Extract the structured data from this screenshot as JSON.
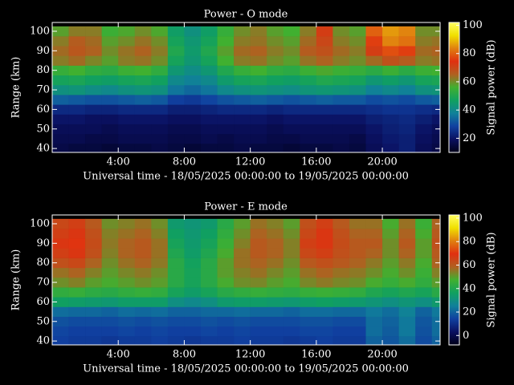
{
  "chart_data": [
    {
      "type": "heatmap",
      "title": "Power - O mode",
      "xlabel": "Universal time - 18/05/2025 00:00:00 to 19/05/2025 00:00:00",
      "ylabel": "Range (km)",
      "x": [
        0.5,
        1.5,
        2.5,
        3.5,
        4.5,
        5.5,
        6.5,
        7.5,
        8.5,
        9.5,
        10.5,
        11.5,
        12.5,
        13.5,
        14.5,
        15.5,
        16.5,
        17.5,
        18.5,
        19.5,
        20.5,
        21.5,
        22.5,
        23.5
      ],
      "y": [
        40,
        45,
        50,
        55,
        60,
        65,
        70,
        75,
        80,
        85,
        90,
        95,
        100
      ],
      "z": [
        [
          16,
          15,
          15,
          14,
          15,
          15,
          16,
          15,
          14,
          15,
          15,
          16,
          15,
          15,
          14,
          15,
          15,
          16,
          15,
          18,
          20,
          22,
          18,
          16
        ],
        [
          17,
          17,
          16,
          16,
          17,
          17,
          17,
          16,
          16,
          17,
          16,
          17,
          17,
          16,
          16,
          17,
          17,
          17,
          16,
          19,
          21,
          22,
          19,
          17
        ],
        [
          18,
          18,
          18,
          17,
          18,
          18,
          18,
          17,
          17,
          18,
          18,
          18,
          18,
          17,
          18,
          18,
          18,
          18,
          18,
          20,
          22,
          23,
          20,
          18
        ],
        [
          20,
          20,
          19,
          19,
          20,
          20,
          20,
          19,
          19,
          20,
          20,
          20,
          20,
          19,
          20,
          20,
          20,
          20,
          20,
          22,
          23,
          24,
          22,
          20
        ],
        [
          24,
          24,
          23,
          23,
          24,
          24,
          24,
          22,
          22,
          23,
          24,
          24,
          24,
          23,
          24,
          24,
          24,
          24,
          24,
          25,
          26,
          26,
          25,
          24
        ],
        [
          33,
          32,
          31,
          31,
          32,
          33,
          32,
          28,
          27,
          29,
          31,
          32,
          33,
          32,
          31,
          32,
          33,
          32,
          32,
          30,
          31,
          30,
          32,
          33
        ],
        [
          42,
          43,
          41,
          40,
          42,
          43,
          42,
          36,
          34,
          36,
          40,
          42,
          43,
          42,
          41,
          43,
          44,
          43,
          42,
          38,
          40,
          38,
          42,
          43
        ],
        [
          48,
          49,
          47,
          46,
          48,
          49,
          47,
          40,
          38,
          40,
          45,
          48,
          49,
          47,
          46,
          48,
          50,
          49,
          48,
          44,
          46,
          44,
          48,
          49
        ],
        [
          54,
          56,
          53,
          52,
          55,
          56,
          53,
          44,
          41,
          44,
          50,
          54,
          56,
          53,
          52,
          55,
          57,
          55,
          54,
          52,
          55,
          52,
          55,
          56
        ],
        [
          62,
          64,
          61,
          58,
          62,
          63,
          60,
          48,
          44,
          48,
          56,
          62,
          63,
          60,
          58,
          63,
          65,
          62,
          60,
          64,
          68,
          66,
          62,
          63
        ],
        [
          64,
          67,
          65,
          60,
          63,
          65,
          62,
          50,
          45,
          50,
          58,
          64,
          65,
          62,
          60,
          66,
          68,
          64,
          62,
          72,
          78,
          76,
          64,
          65
        ],
        [
          62,
          66,
          64,
          58,
          60,
          63,
          60,
          48,
          44,
          48,
          56,
          62,
          63,
          60,
          58,
          64,
          70,
          62,
          60,
          76,
          84,
          82,
          62,
          63
        ],
        [
          58,
          62,
          62,
          55,
          57,
          60,
          57,
          46,
          42,
          46,
          54,
          60,
          62,
          58,
          56,
          62,
          72,
          60,
          58,
          80,
          86,
          84,
          60,
          60
        ]
      ],
      "xlim": [
        0,
        23.5
      ],
      "ylim": [
        38,
        104.5
      ],
      "xticks": [
        {
          "value": 4,
          "label": "4:00"
        },
        {
          "value": 8,
          "label": "8:00"
        },
        {
          "value": 12,
          "label": "12:00"
        },
        {
          "value": 16,
          "label": "16:00"
        },
        {
          "value": 20,
          "label": "20:00"
        }
      ],
      "yticks": [
        40,
        50,
        60,
        70,
        80,
        90,
        100
      ],
      "colorbar": {
        "label": "Signal power (dB)",
        "lim": [
          10,
          102
        ],
        "ticks": [
          20,
          40,
          60,
          80,
          100
        ]
      },
      "colors": [
        "#000018",
        "#0a1060",
        "#1040a0",
        "#10809a",
        "#10a060",
        "#40b030",
        "#b06020",
        "#e03010",
        "#e08010",
        "#f0e000",
        "#ffff60"
      ]
    },
    {
      "type": "heatmap",
      "title": "Power - E mode",
      "xlabel": "Universal time - 18/05/2025 00:00:00 to 19/05/2025 00:00:00",
      "ylabel": "Range (km)",
      "x": [
        0.5,
        1.5,
        2.5,
        3.5,
        4.5,
        5.5,
        6.5,
        7.5,
        8.5,
        9.5,
        10.5,
        11.5,
        12.5,
        13.5,
        14.5,
        15.5,
        16.5,
        17.5,
        18.5,
        19.5,
        20.5,
        21.5,
        22.5,
        23.5
      ],
      "y": [
        40,
        45,
        50,
        55,
        60,
        65,
        70,
        75,
        80,
        85,
        90,
        95,
        100
      ],
      "z": [
        [
          14,
          13,
          13,
          12,
          13,
          13,
          14,
          13,
          12,
          13,
          13,
          14,
          13,
          13,
          12,
          13,
          14,
          13,
          13,
          20,
          18,
          22,
          16,
          20
        ],
        [
          15,
          14,
          14,
          14,
          15,
          14,
          15,
          14,
          14,
          15,
          14,
          15,
          14,
          14,
          14,
          15,
          15,
          14,
          14,
          22,
          19,
          24,
          17,
          22
        ],
        [
          17,
          16,
          16,
          16,
          17,
          16,
          17,
          16,
          16,
          17,
          16,
          17,
          16,
          16,
          16,
          17,
          17,
          16,
          16,
          22,
          20,
          24,
          18,
          22
        ],
        [
          22,
          21,
          21,
          20,
          22,
          21,
          22,
          20,
          20,
          21,
          21,
          22,
          21,
          21,
          20,
          22,
          22,
          21,
          21,
          24,
          22,
          26,
          20,
          24
        ],
        [
          36,
          35,
          34,
          33,
          35,
          35,
          35,
          30,
          28,
          30,
          34,
          35,
          35,
          34,
          33,
          35,
          36,
          35,
          34,
          32,
          30,
          32,
          30,
          34
        ],
        [
          44,
          45,
          43,
          42,
          44,
          45,
          44,
          38,
          35,
          38,
          42,
          44,
          45,
          44,
          43,
          45,
          46,
          45,
          44,
          40,
          38,
          40,
          38,
          42
        ],
        [
          52,
          54,
          50,
          48,
          50,
          52,
          50,
          42,
          38,
          42,
          48,
          52,
          53,
          50,
          48,
          53,
          55,
          53,
          52,
          48,
          45,
          48,
          44,
          50
        ],
        [
          56,
          58,
          54,
          50,
          53,
          55,
          52,
          42,
          38,
          42,
          50,
          54,
          56,
          53,
          50,
          56,
          58,
          56,
          55,
          52,
          48,
          52,
          46,
          54
        ],
        [
          62,
          64,
          58,
          52,
          56,
          58,
          55,
          42,
          37,
          42,
          50,
          56,
          58,
          56,
          52,
          60,
          62,
          60,
          58,
          55,
          50,
          55,
          48,
          58
        ],
        [
          66,
          68,
          62,
          54,
          58,
          60,
          56,
          40,
          35,
          40,
          48,
          56,
          60,
          58,
          54,
          64,
          66,
          62,
          60,
          58,
          52,
          58,
          50,
          60
        ],
        [
          68,
          70,
          63,
          55,
          58,
          60,
          56,
          38,
          34,
          38,
          46,
          54,
          60,
          58,
          54,
          66,
          68,
          63,
          60,
          60,
          52,
          60,
          50,
          62
        ],
        [
          66,
          68,
          62,
          54,
          56,
          58,
          54,
          36,
          33,
          36,
          44,
          52,
          58,
          56,
          52,
          64,
          68,
          62,
          58,
          58,
          50,
          58,
          48,
          60
        ],
        [
          64,
          66,
          60,
          52,
          54,
          56,
          52,
          34,
          32,
          34,
          42,
          50,
          56,
          54,
          50,
          62,
          66,
          60,
          56,
          56,
          48,
          56,
          46,
          58
        ]
      ],
      "xlim": [
        0,
        23.5
      ],
      "ylim": [
        38,
        104.5
      ],
      "xticks": [
        {
          "value": 4,
          "label": "4:00"
        },
        {
          "value": 8,
          "label": "8:00"
        },
        {
          "value": 12,
          "label": "12:00"
        },
        {
          "value": 16,
          "label": "16:00"
        },
        {
          "value": 20,
          "label": "20:00"
        }
      ],
      "yticks": [
        40,
        50,
        60,
        70,
        80,
        90,
        100
      ],
      "colorbar": {
        "label": "Signal power (dB)",
        "lim": [
          -8,
          102.7
        ],
        "ticks": [
          0,
          20,
          40,
          60,
          80,
          100
        ]
      },
      "colors": [
        "#000018",
        "#0a1060",
        "#1040a0",
        "#10809a",
        "#10a060",
        "#40b030",
        "#b06020",
        "#e03010",
        "#e08010",
        "#f0e000",
        "#ffff60"
      ]
    }
  ]
}
